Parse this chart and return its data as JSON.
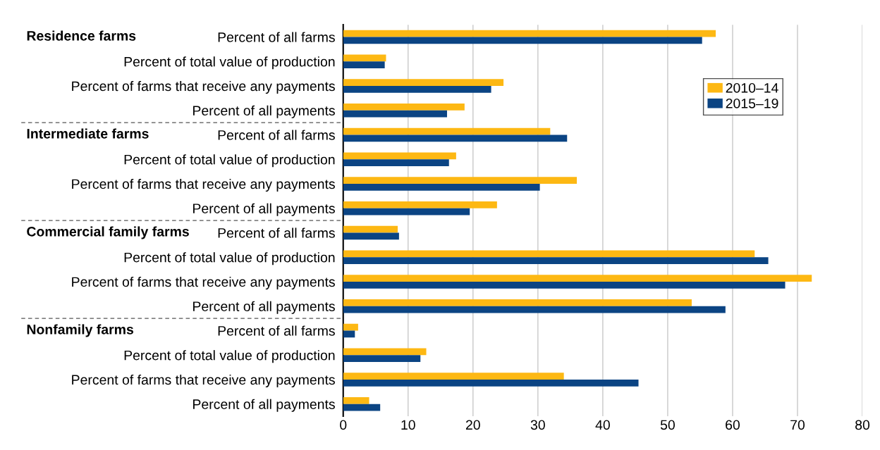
{
  "chart_data": {
    "type": "bar",
    "orientation": "horizontal",
    "categories": [
      "Percent of all farms",
      "Percent of total value of production",
      "Percent of farms that receive any payments",
      "Percent of all payments",
      "Percent of all farms",
      "Percent of total value of production",
      "Percent of farms that receive any payments",
      "Percent of all payments",
      "Percent of all farms",
      "Percent of total value of production",
      "Percent of farms that receive any payments",
      "Percent of all payments",
      "Percent of all farms",
      "Percent of total value of production",
      "Percent of farms that receive any payments",
      "Percent of all payments"
    ],
    "series": [
      {
        "name": "2010–14",
        "color": "#fdb813",
        "values": [
          57.4,
          6.6,
          24.7,
          18.7,
          31.9,
          17.4,
          36.0,
          23.7,
          8.4,
          63.4,
          72.2,
          53.7,
          2.3,
          12.8,
          34.0,
          4.0
        ]
      },
      {
        "name": "2015–19",
        "color": "#0b4483",
        "values": [
          55.3,
          6.4,
          22.8,
          16.0,
          34.5,
          16.3,
          30.3,
          19.5,
          8.6,
          65.5,
          68.1,
          58.9,
          1.8,
          11.9,
          45.5,
          5.7
        ]
      }
    ],
    "xlim": [
      0,
      80
    ],
    "xticks": [
      0,
      10,
      20,
      30,
      40,
      50,
      60,
      70,
      80
    ],
    "grid": "x",
    "legend": "top right",
    "annotations": [
      "Residence farms",
      "Intermediate farms",
      "Commercial family farms",
      "Nonfamily farms"
    ]
  }
}
